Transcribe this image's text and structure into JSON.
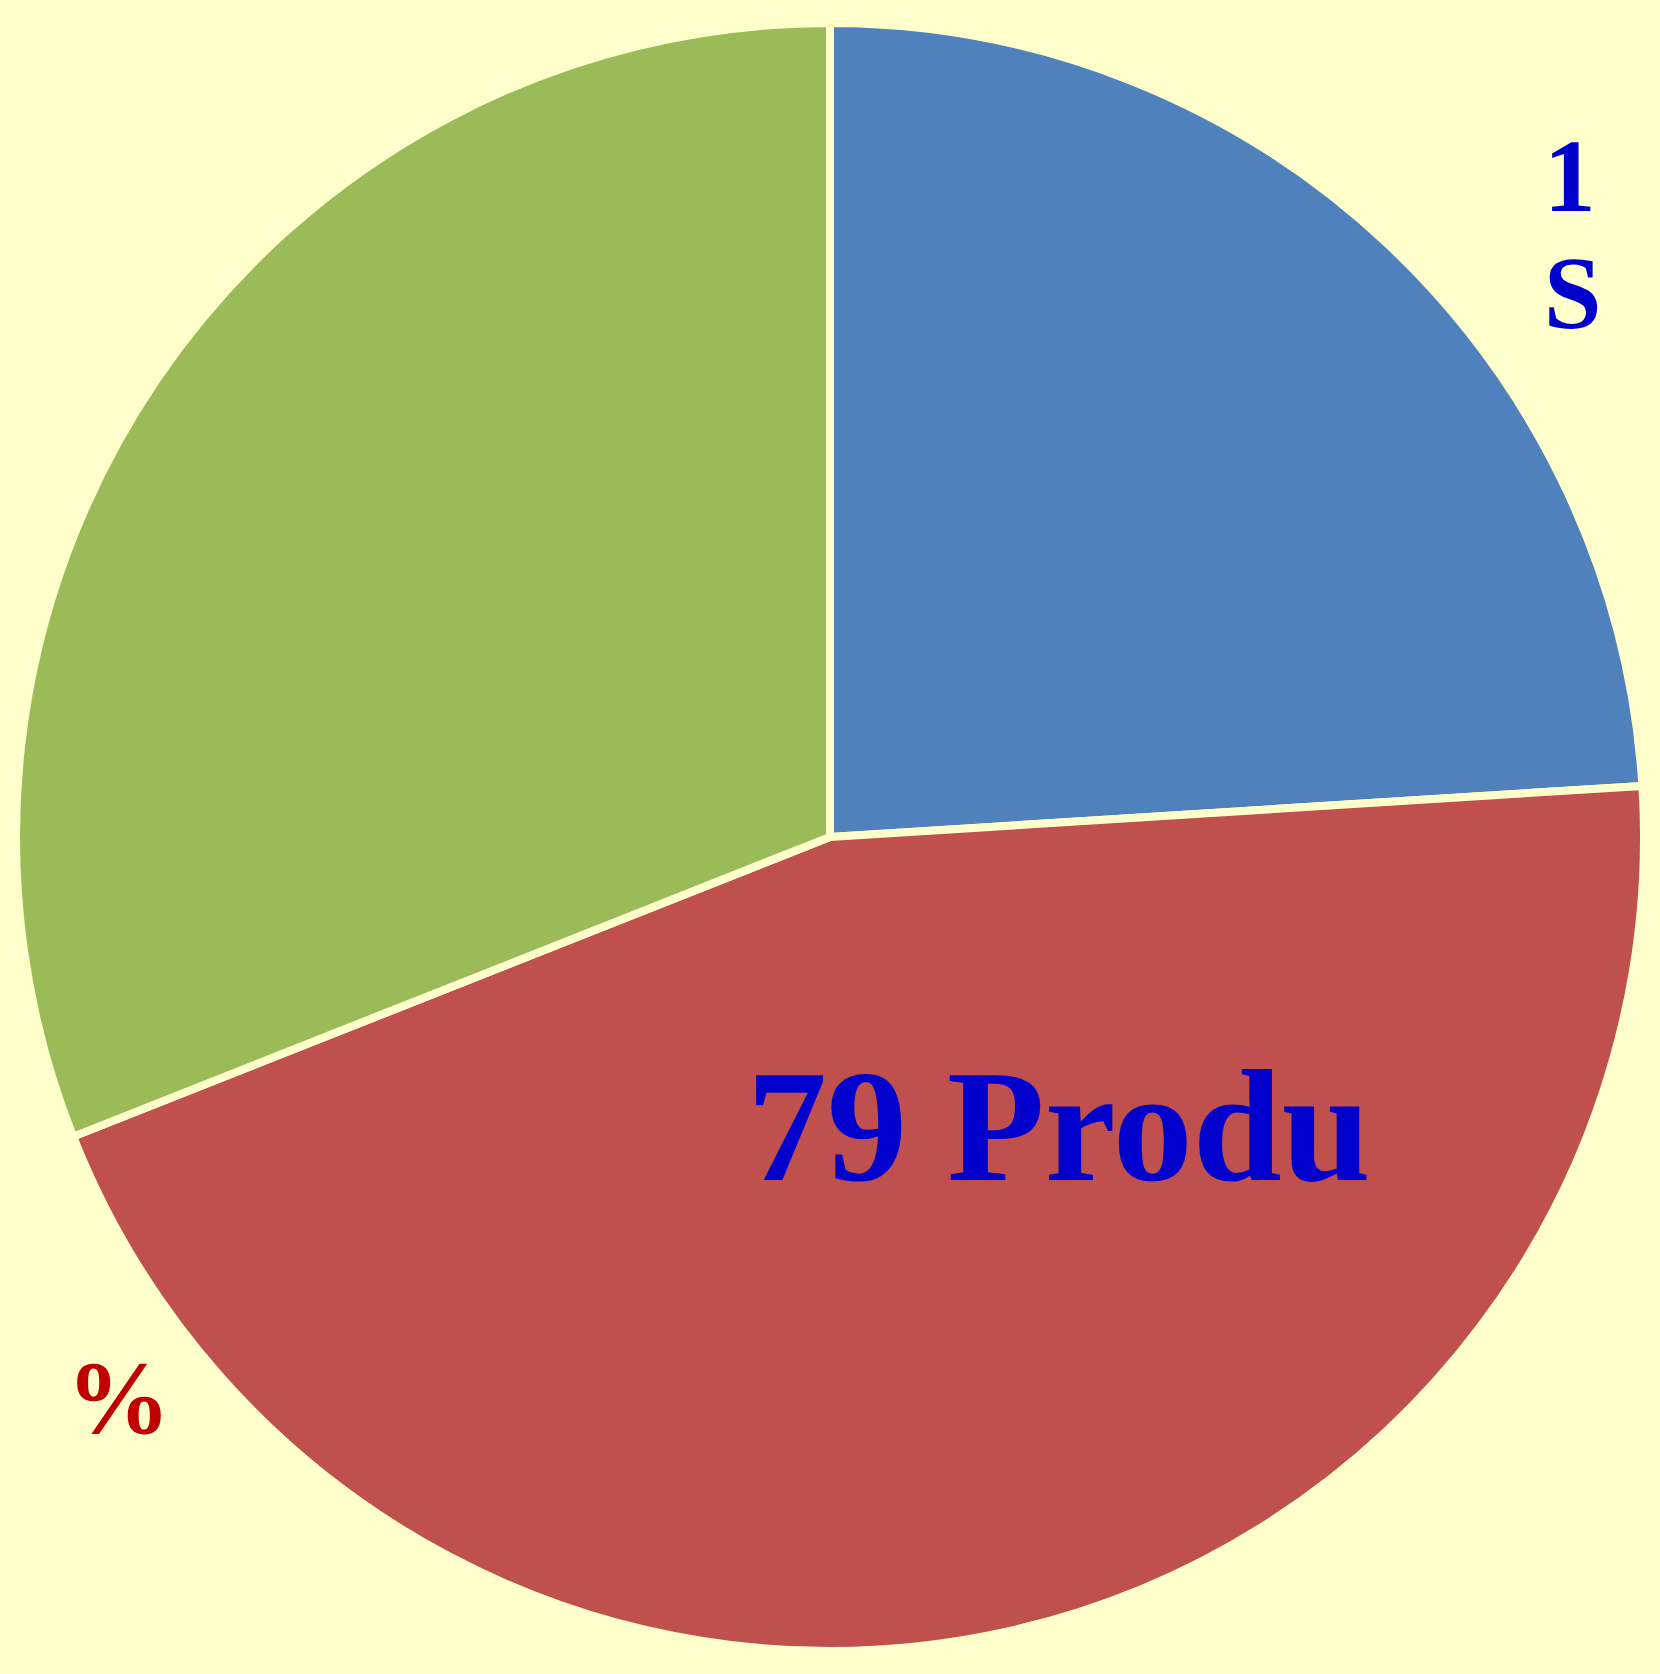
{
  "chart_data": {
    "type": "pie",
    "categories": [
      null,
      null,
      null
    ],
    "values": [
      24,
      45,
      31
    ],
    "colors": [
      "#4f81bd",
      "#c0504d",
      "#9bbb59"
    ],
    "annotations": [
      "1",
      "S",
      "79 Produ",
      "%"
    ],
    "legend": false
  }
}
